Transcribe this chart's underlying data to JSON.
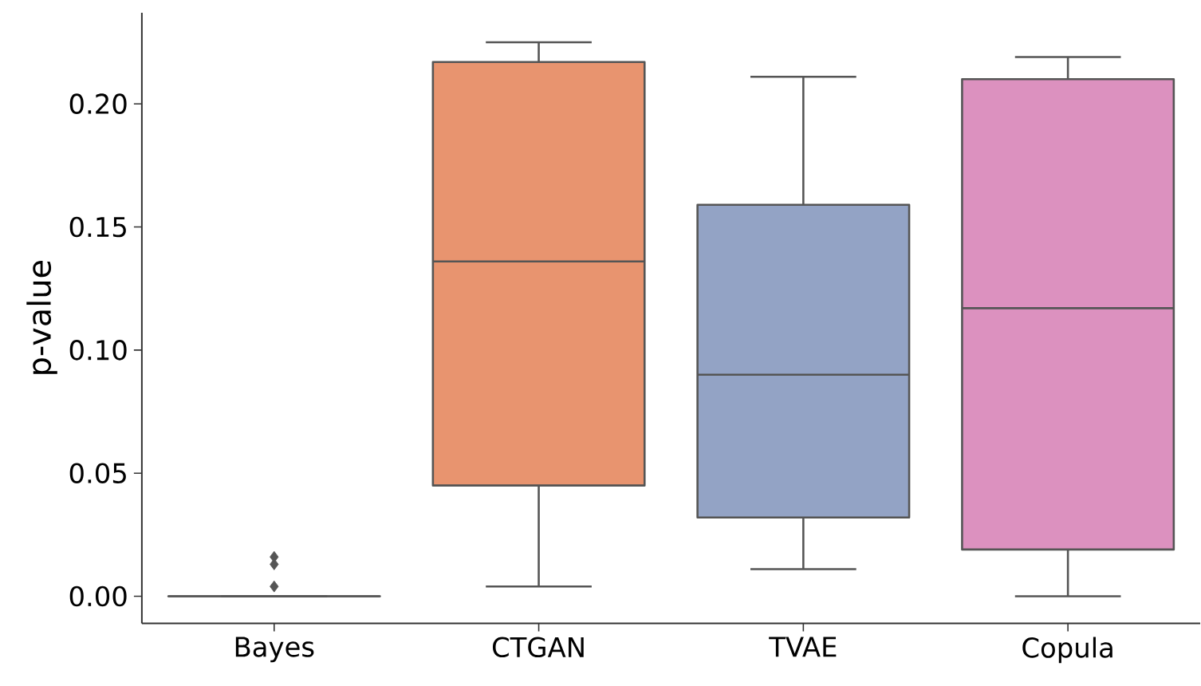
{
  "chart_data": {
    "type": "box",
    "ylabel": "p-value",
    "categories": [
      "Bayes",
      "CTGAN",
      "TVAE",
      "Copula"
    ],
    "colors": [
      "#555555",
      "#e8946f",
      "#93a3c5",
      "#dc91bf"
    ],
    "boxes": [
      {
        "low": 0,
        "q1": 0,
        "median": 0,
        "q3": 0,
        "high": 0,
        "outliers": [
          0.004,
          0.013,
          0.016
        ]
      },
      {
        "low": 0.004,
        "q1": 0.045,
        "median": 0.136,
        "q3": 0.217,
        "high": 0.225
      },
      {
        "low": 0.011,
        "q1": 0.032,
        "median": 0.09,
        "q3": 0.159,
        "high": 0.211
      },
      {
        "low": 0.0,
        "q1": 0.019,
        "median": 0.117,
        "q3": 0.21,
        "high": 0.219
      }
    ],
    "ylim": [
      -0.011,
      0.237
    ],
    "yticks": [
      {
        "value": 0,
        "label": "0.00"
      },
      0.05,
      {
        "value": 0.1,
        "label": "0.10"
      },
      0.15,
      {
        "value": 0.2,
        "label": "0.20"
      }
    ],
    "marker": "diamond"
  }
}
